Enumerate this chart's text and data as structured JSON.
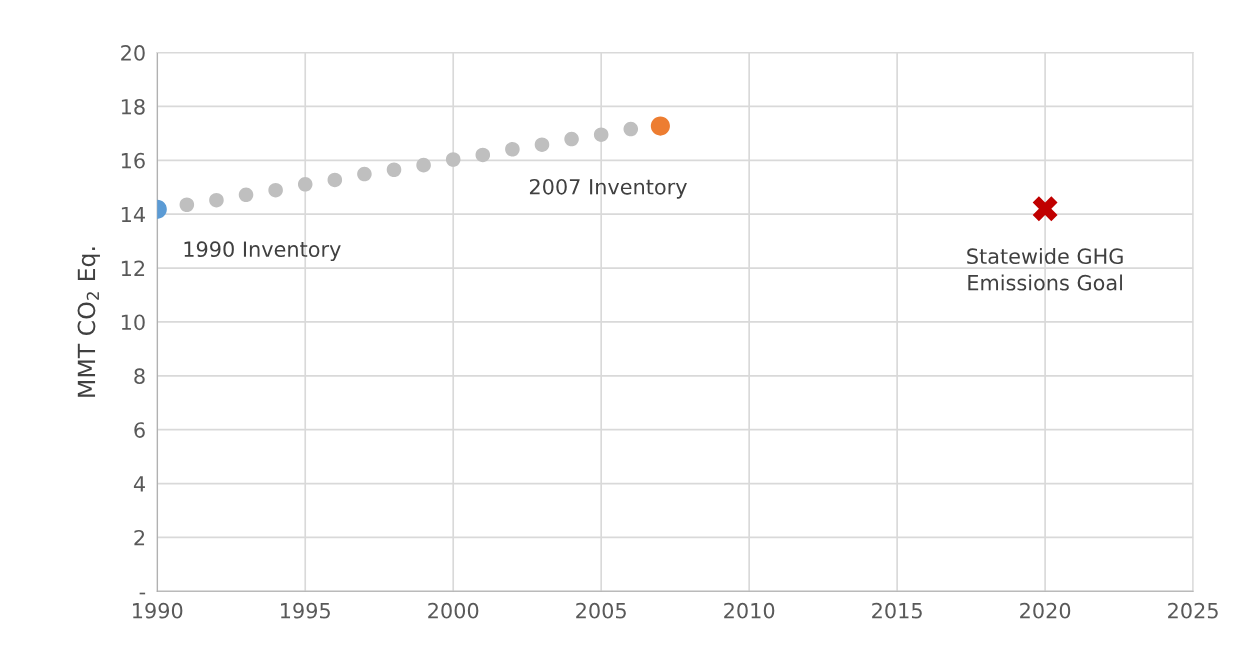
{
  "chart_data": {
    "type": "scatter",
    "ylabel": "MMT CO$_{2}$ Eq.",
    "series": [
      {
        "x": [
          1990
        ],
        "values": [
          14.18
        ],
        "color": "#5b9bd5"
      },
      {
        "x": [
          1991,
          1992,
          1993,
          1994,
          1995,
          1996,
          1997,
          1998,
          1999,
          2000,
          2001,
          2002,
          2003,
          2004,
          2005,
          2006
        ],
        "values": [
          14.35,
          14.52,
          14.72,
          14.89,
          15.11,
          15.27,
          15.49,
          15.65,
          15.82,
          16.03,
          16.2,
          16.41,
          16.58,
          16.79,
          16.95,
          17.16
        ],
        "color": "#bfbfbf"
      },
      {
        "x": [
          2007
        ],
        "values": [
          17.27
        ],
        "color": "#ed7d31"
      },
      {
        "x": [
          2020
        ],
        "values": [
          14.2
        ],
        "color": "#c00000",
        "marker": "cross"
      }
    ],
    "marker": "circle",
    "xlim": [
      1990,
      2025
    ],
    "xticks": [
      1990,
      1995,
      2000,
      2005,
      2010,
      2015,
      2020,
      2025
    ],
    "ylim": [
      0,
      20
    ],
    "yticks": [
      {
        "value": 0,
        "label": "-"
      },
      2,
      4,
      6,
      8,
      10,
      12,
      14,
      16,
      18,
      20
    ],
    "grid": true,
    "annotations": [
      {
        "text": "1990 Inventory",
        "x": 1990,
        "y": 14.18
      },
      {
        "text": "2007 Inventory",
        "x": 2007,
        "y": 17.27
      },
      {
        "text": "Statewide GHG\nEmissions Goal",
        "x": 2020,
        "y": 14.2
      }
    ]
  }
}
